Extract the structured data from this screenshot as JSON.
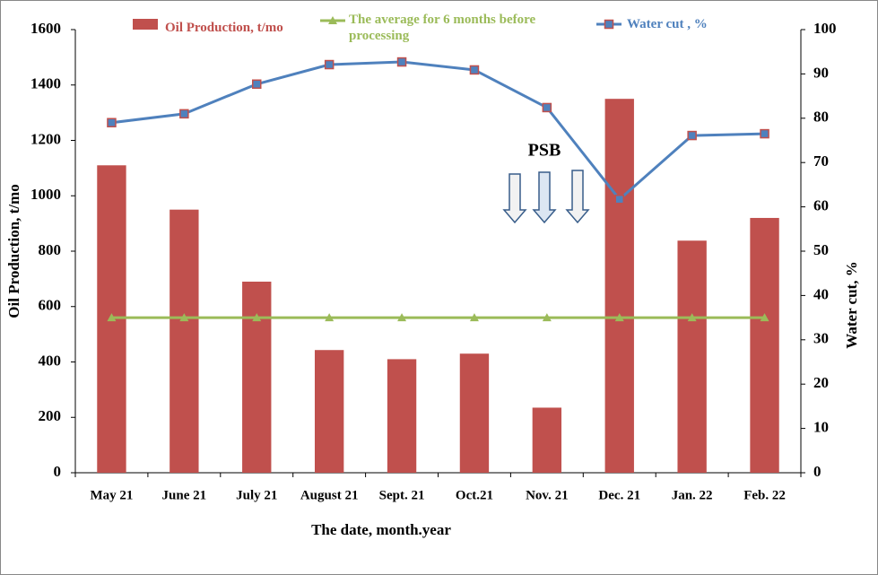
{
  "chart_data": {
    "type": "bar-line",
    "categories": [
      "May 21",
      "June 21",
      "July 21",
      "August 21",
      "Sept. 21",
      "Oct.21",
      "Nov. 21",
      "Dec. 21",
      "Jan. 22",
      "Feb. 22"
    ],
    "series": [
      {
        "name": "Oil Production, t/mo",
        "type": "bar",
        "color": "#c0504d",
        "values": [
          1110,
          950,
          690,
          443,
          410,
          430,
          235,
          1350,
          838,
          920
        ]
      },
      {
        "name": "The average for 6 months before processing",
        "type": "line",
        "marker": "triangle",
        "color": "#9bbb59",
        "values": [
          560,
          560,
          560,
          560,
          560,
          560,
          560,
          560,
          560,
          560
        ]
      },
      {
        "name": "Water cut , %",
        "type": "line",
        "marker": "square",
        "axis": "y2",
        "color": "#4f81bd",
        "values": [
          79,
          81,
          87.7,
          92.1,
          92.7,
          90.9,
          82.4,
          61.7,
          76.1,
          76.5
        ]
      }
    ],
    "xlabel": "The date, month.year",
    "ylabel": "Oil Production, t/mo",
    "y2label": "Water cut, %",
    "ylim": [
      0,
      1600
    ],
    "yticks": [
      0,
      200,
      400,
      600,
      800,
      1000,
      1200,
      1400,
      1600
    ],
    "y2lim": [
      0,
      100
    ],
    "y2ticks": [
      0,
      10,
      20,
      30,
      40,
      50,
      60,
      70,
      80,
      90,
      100
    ],
    "annotation": "PSB"
  }
}
